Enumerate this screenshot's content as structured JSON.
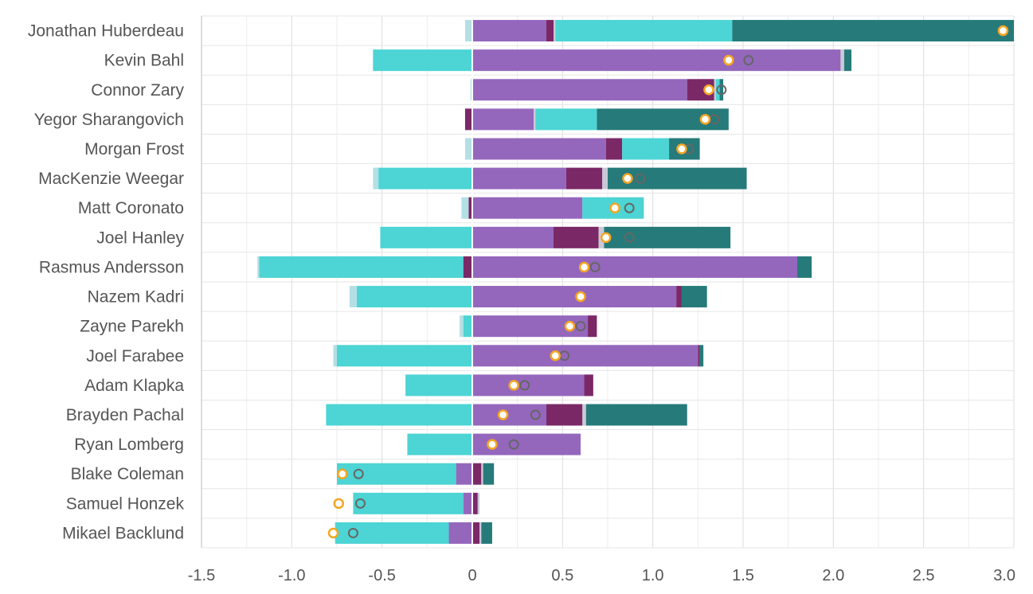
{
  "chart_data": {
    "type": "bar",
    "orientation": "horizontal",
    "stacked": true,
    "title": "",
    "xlabel": "",
    "ylabel": "",
    "xlim": [
      -1.5,
      3.0
    ],
    "xticks": [
      "-1.5",
      "-1.0",
      "-0.5",
      "0",
      "0.5",
      "1.0",
      "1.5",
      "2.0",
      "2.5",
      "3.0"
    ],
    "grid": true,
    "legend": "none",
    "components": [
      {
        "key": "c1",
        "color": "#9467bd"
      },
      {
        "key": "c2",
        "color": "#7b2867"
      },
      {
        "key": "c3",
        "color": "#c9c9d6"
      },
      {
        "key": "c4",
        "color": "#4dd4d4"
      },
      {
        "key": "c5",
        "color": "#267a7a"
      },
      {
        "key": "c6",
        "color": "#b4dfe5"
      }
    ],
    "marker_colors": {
      "orange": "#f5a623",
      "gray": "#666666"
    },
    "players": [
      {
        "name": "Jonathan Huberdeau",
        "c1": 0.41,
        "c2": 0.04,
        "c3": 0.01,
        "c4": 0.98,
        "c5": 1.56,
        "c6": -0.04,
        "orange": 2.94,
        "gray": null
      },
      {
        "name": "Kevin Bahl",
        "c1": 2.04,
        "c2": 0,
        "c3": 0.02,
        "c4": -0.55,
        "c5": 0.04,
        "c6": 0,
        "orange": 1.42,
        "gray": 1.53
      },
      {
        "name": "Connor Zary",
        "c1": 1.19,
        "c2": 0.15,
        "c3": 0.01,
        "c4": 0.02,
        "c5": 0.02,
        "c6": -0.01,
        "orange": 1.31,
        "gray": 1.38
      },
      {
        "name": "Yegor Sharangovich",
        "c1": 0.34,
        "c2": -0.04,
        "c3": 0.01,
        "c4": 0.34,
        "c5": 0.73,
        "c6": 0,
        "orange": 1.29,
        "gray": 1.34
      },
      {
        "name": "Morgan Frost",
        "c1": 0.74,
        "c2": 0.09,
        "c3": 0,
        "c4": 0.26,
        "c5": 0.17,
        "c6": -0.04,
        "orange": 1.16,
        "gray": 1.2
      },
      {
        "name": "MacKenzie Weegar",
        "c1": 0.52,
        "c2": 0.2,
        "c3": 0.03,
        "c4": -0.52,
        "c5": 0.77,
        "c6": -0.03,
        "orange": 0.86,
        "gray": 0.93
      },
      {
        "name": "Matt Coronato",
        "c1": 0.61,
        "c2": -0.02,
        "c3": 0,
        "c4": 0.34,
        "c5": 0,
        "c6": -0.04,
        "orange": 0.79,
        "gray": 0.87
      },
      {
        "name": "Joel Hanley",
        "c1": 0.45,
        "c2": 0.25,
        "c3": 0.03,
        "c4": -0.51,
        "c5": 0.7,
        "c6": 0,
        "orange": 0.74,
        "gray": 0.87
      },
      {
        "name": "Rasmus Andersson",
        "c1": 1.8,
        "c2": -0.05,
        "c3": 0,
        "c4": -1.13,
        "c5": 0.08,
        "c6": -0.01,
        "orange": 0.62,
        "gray": 0.68
      },
      {
        "name": "Nazem Kadri",
        "c1": 1.13,
        "c2": 0.03,
        "c3": 0,
        "c4": -0.64,
        "c5": 0.14,
        "c6": -0.04,
        "orange": 0.6,
        "gray": null
      },
      {
        "name": "Zayne Parekh",
        "c1": 0.64,
        "c2": 0.05,
        "c3": 0,
        "c4": -0.05,
        "c5": 0,
        "c6": -0.02,
        "orange": 0.54,
        "gray": 0.6
      },
      {
        "name": "Joel Farabee",
        "c1": 1.25,
        "c2": 0.01,
        "c3": 0,
        "c4": -0.75,
        "c5": 0.02,
        "c6": -0.02,
        "orange": 0.46,
        "gray": 0.51
      },
      {
        "name": "Adam Klapka",
        "c1": 0.62,
        "c2": 0.05,
        "c3": 0,
        "c4": -0.37,
        "c5": 0,
        "c6": 0,
        "orange": 0.23,
        "gray": 0.29
      },
      {
        "name": "Brayden Pachal",
        "c1": 0.41,
        "c2": 0.2,
        "c3": 0.02,
        "c4": -0.81,
        "c5": 0.56,
        "c6": 0,
        "orange": 0.17,
        "gray": 0.35
      },
      {
        "name": "Ryan Lomberg",
        "c1": 0.6,
        "c2": 0,
        "c3": 0,
        "c4": -0.36,
        "c5": 0,
        "c6": 0,
        "orange": 0.11,
        "gray": 0.23
      },
      {
        "name": "Blake Coleman",
        "c1": -0.09,
        "c2": 0.05,
        "c3": 0.01,
        "c4": -0.66,
        "c5": 0.06,
        "c6": 0,
        "orange": -0.72,
        "gray": -0.63
      },
      {
        "name": "Samuel Honzek",
        "c1": -0.05,
        "c2": 0.03,
        "c3": 0.01,
        "c4": -0.61,
        "c5": 0,
        "c6": 0,
        "orange": -0.74,
        "gray": -0.62
      },
      {
        "name": "Mikael Backlund",
        "c1": -0.13,
        "c2": 0.04,
        "c3": 0.01,
        "c4": -0.63,
        "c5": 0.06,
        "c6": 0,
        "orange": -0.77,
        "gray": -0.66
      }
    ]
  }
}
